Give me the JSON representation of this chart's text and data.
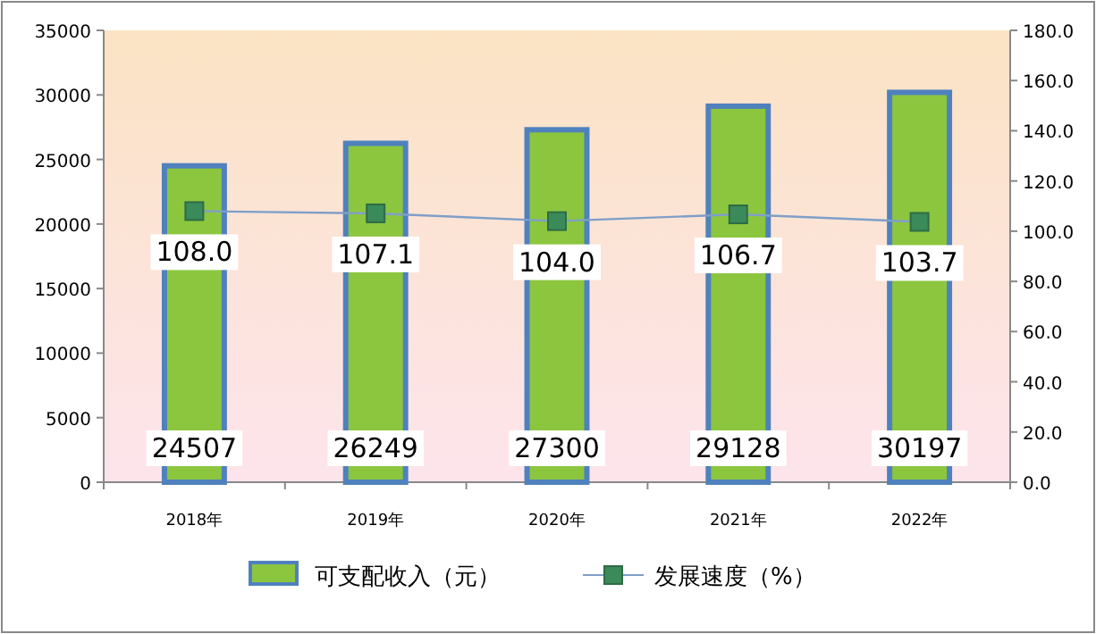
{
  "chart_data": {
    "type": "bar",
    "categories": [
      "2018年",
      "2019年",
      "2020年",
      "2021年",
      "2022年"
    ],
    "series": [
      {
        "name": "可支配收入（元）",
        "color": "#8cc63f",
        "values": [
          24507,
          26249,
          27300,
          29128,
          30197
        ]
      },
      {
        "name": "发展速度（%）",
        "type": "line",
        "axis": "y2",
        "color": "#3a8a5a",
        "values": [
          108.0,
          107.1,
          104.0,
          106.7,
          103.7
        ],
        "value_labels": [
          "108.0",
          "107.1",
          "104.0",
          "106.7",
          "103.7"
        ]
      }
    ],
    "ylim": [
      0,
      35000
    ],
    "yticks": [
      0,
      5000,
      10000,
      15000,
      20000,
      25000,
      30000,
      35000
    ],
    "y2lim": [
      0,
      180
    ],
    "y2ticks": [
      {
        "value": 0,
        "label": "0.0"
      },
      {
        "value": 20,
        "label": "20.0"
      },
      {
        "value": 40,
        "label": "40.0"
      },
      {
        "value": 60,
        "label": "60.0"
      },
      {
        "value": 80,
        "label": "80.0"
      },
      {
        "value": 100,
        "label": "100.0"
      },
      {
        "value": 120,
        "label": "120.0"
      },
      {
        "value": 140,
        "label": "140.0"
      },
      {
        "value": 160,
        "label": "160.0"
      },
      {
        "value": 180,
        "label": "180.0"
      }
    ],
    "data_labels": true,
    "marker": "square",
    "legend": "bottom",
    "grid": false
  }
}
